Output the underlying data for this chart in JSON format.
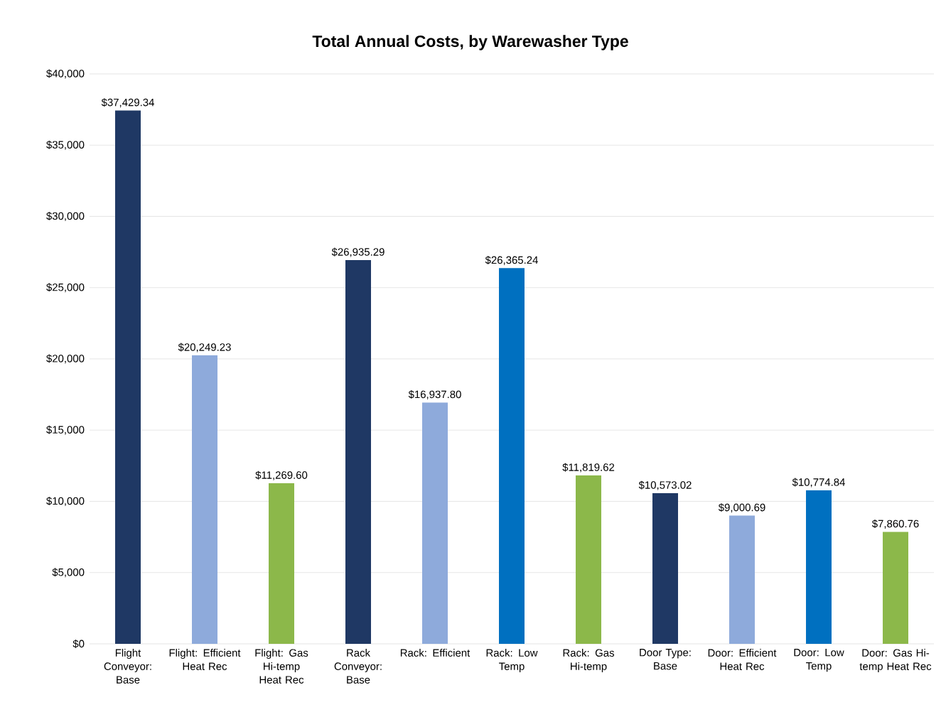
{
  "chart_data": {
    "type": "bar",
    "title": "Total Annual Costs, by Warewasher Type",
    "categories": [
      "Flight Conveyor: Base",
      "Flight: Efficient Heat Rec",
      "Flight: Gas Hi-temp Heat Rec",
      "Rack Conveyor: Base",
      "Rack: Efficient",
      "Rack: Low Temp",
      "Rack: Gas Hi-temp",
      "Door Type: Base",
      "Door: Efficient Heat Rec",
      "Door: Low Temp",
      "Door: Gas Hi-temp Heat Rec"
    ],
    "values": [
      37429.34,
      20249.23,
      11269.6,
      26935.29,
      16937.8,
      26365.24,
      11819.62,
      10573.02,
      9000.69,
      10774.84,
      7860.76
    ],
    "value_labels": [
      "$37,429.34",
      "$20,249.23",
      "$11,269.60",
      "$26,935.29",
      "$16,937.80",
      "$26,365.24",
      "$11,819.62",
      "$10,573.02",
      "$9,000.69",
      "$10,774.84",
      "$7,860.76"
    ],
    "colors": [
      "#1f3864",
      "#8eaadb",
      "#8cb84a",
      "#1f3864",
      "#8eaadb",
      "#0070c0",
      "#8cb84a",
      "#1f3864",
      "#8eaadb",
      "#0070c0",
      "#8cb84a"
    ],
    "ylim": [
      0,
      40000
    ],
    "yticks": [
      {
        "value": 0,
        "label": "$0"
      },
      {
        "value": 5000,
        "label": "$5,000"
      },
      {
        "value": 10000,
        "label": "$10,000"
      },
      {
        "value": 15000,
        "label": "$15,000"
      },
      {
        "value": 20000,
        "label": "$20,000"
      },
      {
        "value": 25000,
        "label": "$25,000"
      },
      {
        "value": 30000,
        "label": "$30,000"
      },
      {
        "value": 35000,
        "label": "$35,000"
      },
      {
        "value": 40000,
        "label": "$40,000"
      }
    ],
    "grid": "y"
  }
}
